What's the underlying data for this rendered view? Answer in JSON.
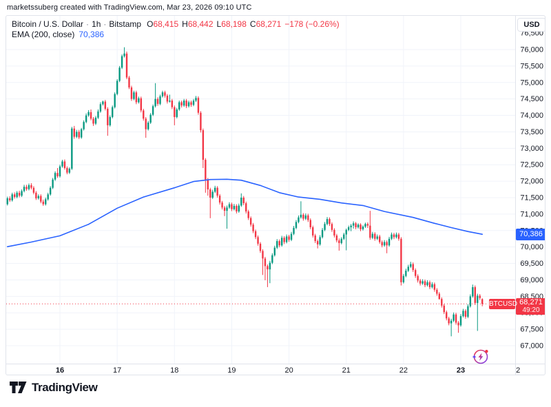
{
  "attribution": "marketssuberg created with TradingView.com, Mar 23, 2026 09:10 UTC",
  "legend": {
    "title": "Bitcoin / U.S. Dollar",
    "interval": "1h",
    "exchange": "Bitstamp",
    "separator": "·",
    "ohlc": [
      {
        "label": "O",
        "value": "68,415"
      },
      {
        "label": "H",
        "value": "68,442"
      },
      {
        "label": "L",
        "value": "68,198"
      },
      {
        "label": "C",
        "value": "68,271"
      }
    ],
    "change": "−178 (−0.26%)",
    "indicator_label": "EMA (200, close)",
    "indicator_value": "70,386"
  },
  "axis": {
    "currency_button": "USD",
    "price_ticks": [
      67000,
      67500,
      68000,
      68500,
      69000,
      69500,
      70000,
      70500,
      71000,
      71500,
      72000,
      72500,
      73000,
      73500,
      74000,
      74500,
      75000,
      75500,
      76000,
      76500
    ],
    "time_ticks": [
      {
        "label": "16",
        "index": 22,
        "bold": true
      },
      {
        "label": "17",
        "index": 46,
        "bold": false
      },
      {
        "label": "18",
        "index": 70,
        "bold": false
      },
      {
        "label": "19",
        "index": 94,
        "bold": false
      },
      {
        "label": "20",
        "index": 118,
        "bold": false
      },
      {
        "label": "21",
        "index": 142,
        "bold": false
      },
      {
        "label": "22",
        "index": 166,
        "bold": false
      },
      {
        "label": "23",
        "index": 190,
        "bold": true
      },
      {
        "label": "2",
        "index": 214,
        "bold": false
      }
    ]
  },
  "badges": {
    "ema_value": "70,386",
    "price_value": "68,271",
    "countdown": "49:20",
    "symbol_tag": "BTCUSD"
  },
  "footer": {
    "logo_text": "TradingView"
  },
  "colors": {
    "up": "#089981",
    "down": "#f23645",
    "ema": "#2962ff",
    "badge_blue": "#2962ff",
    "badge_red": "#f23645",
    "grid": "#f0f3fa",
    "border": "#e0e3eb",
    "text": "#131722",
    "price_line": "#f23645"
  },
  "chart_data": {
    "type": "candlestick",
    "title": "Bitcoin / U.S. Dollar",
    "symbol": "BTCUSD",
    "exchange": "Bitstamp",
    "timeframe": "1h",
    "ylim": [
      66456,
      76335
    ],
    "grid": true,
    "price_line": 68271,
    "last_candle": {
      "open": 68415,
      "high": 68442,
      "low": 68198,
      "close": 68271,
      "change": -178,
      "change_pct": -0.26
    },
    "ema_200_last": 70386,
    "ema_200_points": [
      [
        0,
        70010
      ],
      [
        10,
        70150
      ],
      [
        22,
        70340
      ],
      [
        34,
        70690
      ],
      [
        46,
        71180
      ],
      [
        57,
        71520
      ],
      [
        70,
        71800
      ],
      [
        78,
        71990
      ],
      [
        85,
        72050
      ],
      [
        92,
        72058
      ],
      [
        98,
        72030
      ],
      [
        106,
        71870
      ],
      [
        114,
        71650
      ],
      [
        122,
        71520
      ],
      [
        131,
        71450
      ],
      [
        140,
        71340
      ],
      [
        149,
        71262
      ],
      [
        158,
        71080
      ],
      [
        170,
        70900
      ],
      [
        179,
        70720
      ],
      [
        186,
        70590
      ],
      [
        193,
        70470
      ],
      [
        199,
        70386
      ]
    ],
    "candles": [
      [
        71300,
        71530,
        71260,
        71480
      ],
      [
        71480,
        71540,
        71370,
        71420
      ],
      [
        71420,
        71650,
        71380,
        71600
      ],
      [
        71600,
        71660,
        71470,
        71520
      ],
      [
        71520,
        71700,
        71480,
        71650
      ],
      [
        71650,
        71710,
        71510,
        71560
      ],
      [
        71560,
        71750,
        71520,
        71700
      ],
      [
        71700,
        71890,
        71660,
        71830
      ],
      [
        71830,
        71890,
        71710,
        71760
      ],
      [
        71760,
        71930,
        71720,
        71880
      ],
      [
        71880,
        71940,
        71750,
        71800
      ],
      [
        71800,
        71850,
        71600,
        71650
      ],
      [
        71650,
        71700,
        71430,
        71480
      ],
      [
        71480,
        71600,
        71440,
        71550
      ],
      [
        71550,
        71600,
        71330,
        71380
      ],
      [
        71380,
        71440,
        71250,
        71300
      ],
      [
        71300,
        71500,
        71260,
        71450
      ],
      [
        71450,
        71650,
        71410,
        71600
      ],
      [
        71600,
        71850,
        71560,
        71800
      ],
      [
        71800,
        72100,
        71760,
        72050
      ],
      [
        72050,
        72300,
        72010,
        72250
      ],
      [
        72250,
        72400,
        72100,
        72150
      ],
      [
        72150,
        72500,
        72110,
        72450
      ],
      [
        72450,
        72650,
        72410,
        72600
      ],
      [
        72600,
        72660,
        72350,
        72400
      ],
      [
        72400,
        72450,
        72210,
        72260
      ],
      [
        72260,
        72420,
        72220,
        72380
      ],
      [
        72380,
        73650,
        72340,
        73600
      ],
      [
        73600,
        73680,
        73290,
        73350
      ],
      [
        73350,
        73560,
        73310,
        73500
      ],
      [
        73500,
        73560,
        73280,
        73330
      ],
      [
        73330,
        73620,
        73290,
        73580
      ],
      [
        73580,
        73850,
        73540,
        73800
      ],
      [
        73800,
        74060,
        73760,
        74000
      ],
      [
        74000,
        74160,
        73960,
        74100
      ],
      [
        74100,
        74180,
        73850,
        73900
      ],
      [
        73900,
        73950,
        73680,
        73750
      ],
      [
        73750,
        73980,
        73710,
        73930
      ],
      [
        73930,
        74180,
        73890,
        74120
      ],
      [
        74120,
        74400,
        74080,
        74340
      ],
      [
        74340,
        74450,
        74300,
        74420
      ],
      [
        74420,
        74470,
        74150,
        74200
      ],
      [
        74200,
        74250,
        73380,
        73700
      ],
      [
        73700,
        74000,
        73660,
        73950
      ],
      [
        73950,
        74300,
        73910,
        74250
      ],
      [
        74250,
        74700,
        74210,
        74650
      ],
      [
        74650,
        75100,
        74610,
        75050
      ],
      [
        75050,
        75500,
        75010,
        75450
      ],
      [
        75450,
        75850,
        75410,
        75800
      ],
      [
        75800,
        76071,
        75760,
        75880
      ],
      [
        75880,
        75940,
        75100,
        75150
      ],
      [
        75150,
        75200,
        74800,
        74850
      ],
      [
        74850,
        74900,
        74440,
        74500
      ],
      [
        74500,
        74750,
        74460,
        74700
      ],
      [
        74700,
        74750,
        74340,
        74400
      ],
      [
        74400,
        74570,
        74360,
        74520
      ],
      [
        74520,
        74570,
        74090,
        74150
      ],
      [
        74150,
        74200,
        73840,
        73900
      ],
      [
        73900,
        73950,
        73320,
        73580
      ],
      [
        73580,
        73830,
        73540,
        73780
      ],
      [
        73780,
        74070,
        73740,
        74020
      ],
      [
        74020,
        74330,
        73980,
        74280
      ],
      [
        74280,
        74980,
        74240,
        74500
      ],
      [
        74500,
        74550,
        74290,
        74350
      ],
      [
        74350,
        74630,
        74310,
        74580
      ],
      [
        74580,
        74750,
        74540,
        74700
      ],
      [
        74700,
        74750,
        74540,
        74600
      ],
      [
        74600,
        74650,
        74360,
        74420
      ],
      [
        74420,
        74630,
        74390,
        74450
      ],
      [
        74450,
        74500,
        74190,
        74250
      ],
      [
        74250,
        74300,
        73700,
        73950
      ],
      [
        73950,
        74230,
        73910,
        74180
      ],
      [
        74180,
        74450,
        74140,
        74400
      ],
      [
        74400,
        74450,
        74240,
        74300
      ],
      [
        74300,
        74500,
        74260,
        74450
      ],
      [
        74450,
        74500,
        74220,
        74280
      ],
      [
        74280,
        74450,
        74240,
        74400
      ],
      [
        74400,
        74450,
        74260,
        74320
      ],
      [
        74320,
        74500,
        74280,
        74450
      ],
      [
        74450,
        74590,
        74410,
        74530
      ],
      [
        74530,
        74580,
        74020,
        74080
      ],
      [
        74080,
        74130,
        73480,
        73550
      ],
      [
        73550,
        73600,
        72400,
        72650
      ],
      [
        72650,
        72700,
        71650,
        72050
      ],
      [
        72050,
        72100,
        71560,
        71750
      ],
      [
        71750,
        71800,
        70876,
        71500
      ],
      [
        71500,
        71740,
        71460,
        71680
      ],
      [
        71680,
        71860,
        71640,
        71800
      ],
      [
        71800,
        71850,
        71500,
        71560
      ],
      [
        71560,
        71610,
        71290,
        71350
      ],
      [
        71350,
        71400,
        71140,
        71200
      ],
      [
        71200,
        71250,
        70940,
        71100
      ],
      [
        71100,
        71260,
        70556,
        71200
      ],
      [
        71200,
        71360,
        71160,
        71300
      ],
      [
        71300,
        71350,
        71090,
        71150
      ],
      [
        71150,
        71310,
        71110,
        71250
      ],
      [
        71250,
        71300,
        71020,
        71080
      ],
      [
        71080,
        71320,
        71040,
        71260
      ],
      [
        71260,
        71630,
        71220,
        71500
      ],
      [
        71500,
        71550,
        71270,
        71330
      ],
      [
        71330,
        71380,
        71020,
        71080
      ],
      [
        71080,
        71130,
        70820,
        70880
      ],
      [
        70880,
        70930,
        70620,
        70680
      ],
      [
        70680,
        70730,
        70420,
        70480
      ],
      [
        70480,
        70530,
        70240,
        70300
      ],
      [
        70300,
        70350,
        70040,
        70100
      ],
      [
        70100,
        70150,
        69820,
        69880
      ],
      [
        69880,
        69930,
        69150,
        69650
      ],
      [
        69650,
        69700,
        68990,
        69420
      ],
      [
        69420,
        69470,
        68781,
        69320
      ],
      [
        69320,
        69580,
        68900,
        69520
      ],
      [
        69520,
        69810,
        69480,
        69750
      ],
      [
        69750,
        70040,
        69710,
        69980
      ],
      [
        69980,
        70240,
        69940,
        70180
      ],
      [
        70180,
        70230,
        69990,
        70050
      ],
      [
        70050,
        70340,
        70010,
        70280
      ],
      [
        70280,
        70330,
        70090,
        70150
      ],
      [
        70150,
        70380,
        70110,
        70320
      ],
      [
        70320,
        70370,
        70160,
        70220
      ],
      [
        70220,
        70460,
        70180,
        70400
      ],
      [
        70400,
        70640,
        70360,
        70580
      ],
      [
        70580,
        70820,
        70540,
        70760
      ],
      [
        70760,
        70960,
        70720,
        70900
      ],
      [
        70900,
        71390,
        70860,
        70980
      ],
      [
        70980,
        71030,
        70800,
        70860
      ],
      [
        70860,
        71020,
        70820,
        70960
      ],
      [
        70960,
        71010,
        70760,
        70820
      ],
      [
        70820,
        70870,
        70540,
        70600
      ],
      [
        70600,
        70650,
        70290,
        70350
      ],
      [
        70350,
        70400,
        70120,
        70180
      ],
      [
        70180,
        70230,
        69957,
        70080
      ],
      [
        70080,
        70360,
        70040,
        70300
      ],
      [
        70300,
        70580,
        70260,
        70520
      ],
      [
        70520,
        70760,
        70480,
        70700
      ],
      [
        70700,
        70910,
        70660,
        70850
      ],
      [
        70850,
        70900,
        70640,
        70700
      ],
      [
        70700,
        70750,
        70460,
        70520
      ],
      [
        70520,
        70570,
        70290,
        70350
      ],
      [
        70350,
        70400,
        70140,
        70200
      ],
      [
        70200,
        70260,
        69890,
        70120
      ],
      [
        70120,
        70300,
        70080,
        70250
      ],
      [
        70250,
        70430,
        70210,
        70380
      ],
      [
        70380,
        70560,
        69900,
        70520
      ],
      [
        70520,
        70650,
        70480,
        70600
      ],
      [
        70600,
        70700,
        70480,
        70650
      ],
      [
        70650,
        70780,
        70560,
        70720
      ],
      [
        70720,
        70760,
        70540,
        70600
      ],
      [
        70600,
        70720,
        70560,
        70680
      ],
      [
        70680,
        70720,
        70480,
        70540
      ],
      [
        70540,
        70660,
        70500,
        70620
      ],
      [
        70620,
        70740,
        70580,
        70700
      ],
      [
        70700,
        70750,
        70580,
        70650
      ],
      [
        70650,
        71100,
        70220,
        70280
      ],
      [
        70280,
        70460,
        70240,
        70400
      ],
      [
        70400,
        70450,
        70190,
        70250
      ],
      [
        70250,
        70380,
        70210,
        70320
      ],
      [
        70320,
        70370,
        70100,
        70150
      ],
      [
        70150,
        70200,
        69990,
        70050
      ],
      [
        70050,
        70210,
        70010,
        70150
      ],
      [
        70150,
        70200,
        69810,
        70050
      ],
      [
        70050,
        70310,
        70010,
        70250
      ],
      [
        70250,
        70440,
        70210,
        70380
      ],
      [
        70380,
        70430,
        70240,
        70300
      ],
      [
        70300,
        70440,
        70260,
        70380
      ],
      [
        70380,
        70430,
        70190,
        70250
      ],
      [
        70250,
        70300,
        68830,
        68930
      ],
      [
        68930,
        69180,
        68890,
        69120
      ],
      [
        69120,
        69340,
        69080,
        69280
      ],
      [
        69280,
        69460,
        69240,
        69400
      ],
      [
        69400,
        69551,
        69360,
        69480
      ],
      [
        69480,
        69530,
        69240,
        69300
      ],
      [
        69300,
        69350,
        69060,
        69120
      ],
      [
        69120,
        69170,
        68920,
        68980
      ],
      [
        68980,
        69030,
        68830,
        68890
      ],
      [
        68890,
        69020,
        68850,
        68960
      ],
      [
        68960,
        69010,
        68780,
        68840
      ],
      [
        68840,
        68990,
        68800,
        68930
      ],
      [
        68930,
        68980,
        68720,
        68780
      ],
      [
        68780,
        68930,
        68740,
        68870
      ],
      [
        68870,
        68920,
        68640,
        68700
      ],
      [
        68700,
        68750,
        68520,
        68580
      ],
      [
        68580,
        68630,
        68397,
        68420
      ],
      [
        68420,
        68470,
        68160,
        68220
      ],
      [
        68220,
        68270,
        67960,
        68020
      ],
      [
        68020,
        68070,
        67770,
        67830
      ],
      [
        67830,
        67880,
        67620,
        67680
      ],
      [
        67680,
        67820,
        67286,
        67760
      ],
      [
        67760,
        68010,
        67720,
        67950
      ],
      [
        67950,
        68000,
        67640,
        67700
      ],
      [
        67700,
        67750,
        67393,
        67620
      ],
      [
        67620,
        67960,
        67580,
        67900
      ],
      [
        67900,
        68120,
        67860,
        68060
      ],
      [
        68060,
        68110,
        67820,
        67880
      ],
      [
        67880,
        68260,
        67840,
        68200
      ],
      [
        68200,
        68560,
        68160,
        68500
      ],
      [
        68500,
        68858,
        68460,
        68780
      ],
      [
        68780,
        68830,
        68240,
        68300
      ],
      [
        68300,
        68580,
        67450,
        68520
      ],
      [
        68520,
        68570,
        68390,
        68449
      ],
      [
        68415,
        68442,
        68198,
        68271
      ]
    ]
  }
}
